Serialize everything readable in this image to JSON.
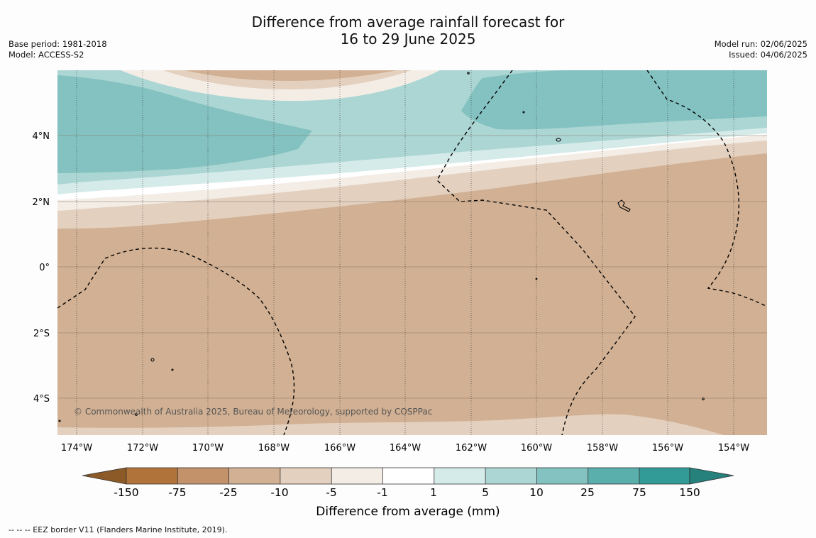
{
  "title": {
    "line1": "Difference from average rainfall forecast for",
    "line2": "16 to 29 June 2025"
  },
  "meta_left": {
    "base_period": "Base period: 1981-2018",
    "model": "Model: ACCESS-S2"
  },
  "meta_right": {
    "model_run": "Model run: 02/06/2025",
    "issued": "Issued: 04/06/2025"
  },
  "map": {
    "lat_labels": [
      "4°N",
      "2°N",
      "0°",
      "2°S",
      "4°S"
    ],
    "lon_labels": [
      "174°W",
      "172°W",
      "170°W",
      "168°W",
      "166°W",
      "164°W",
      "162°W",
      "160°W",
      "158°W",
      "156°W",
      "154°W"
    ],
    "copyright": "© Commonwealth of Australia 2025, Bureau of Meteorology, supported by COSPPac"
  },
  "colorbar": {
    "ticks": [
      "-150",
      "-75",
      "-25",
      "-10",
      "-5",
      "-1",
      "1",
      "5",
      "10",
      "25",
      "75",
      "150"
    ],
    "colors": [
      "#8c5a26",
      "#b0743a",
      "#c3916a",
      "#d1b093",
      "#e3d0bf",
      "#f3ede6",
      "#ffffff",
      "#d5ebe9",
      "#acd6d4",
      "#83c2c0",
      "#5aaeab",
      "#339b97",
      "#26807c"
    ],
    "title": "Difference from average (mm)"
  },
  "footer": "--  --  -- EEZ border V11 (Flanders Marine Institute, 2019)."
}
